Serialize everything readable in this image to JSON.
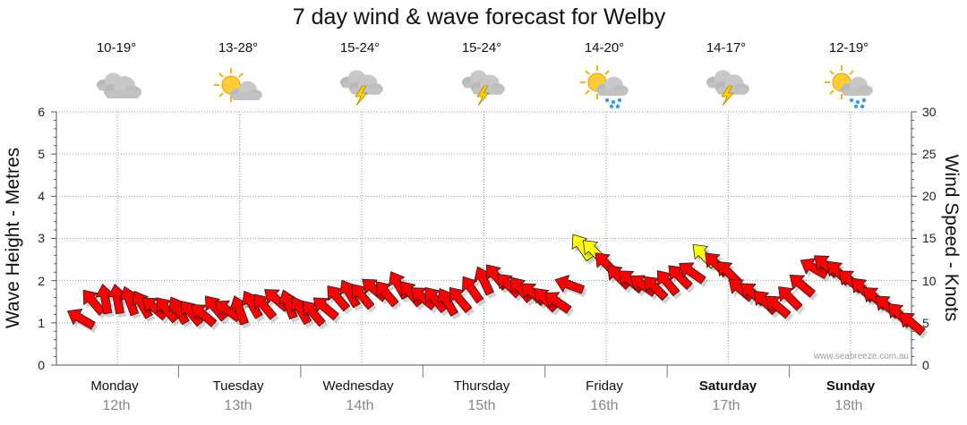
{
  "chart_data": {
    "type": "line",
    "title": "7 day wind & wave forecast for Welby",
    "ylabel_left": "Wave Height - Metres",
    "ylabel_right": "Wind Speed - Knots",
    "ylim_left": [
      0,
      6
    ],
    "ylim_right": [
      0,
      30
    ],
    "yticks_left": [
      "0",
      "1",
      "2",
      "3",
      "4",
      "5",
      "6"
    ],
    "yticks_right": [
      "0",
      "5",
      "10",
      "15",
      "20",
      "25",
      "30"
    ],
    "grid": true,
    "credit": "www.seabreeze.com.au",
    "days": [
      {
        "name": "Monday",
        "date": "12th",
        "temp": "10-19°",
        "weather": "cloudy",
        "bold": false
      },
      {
        "name": "Tuesday",
        "date": "13th",
        "temp": "13-28°",
        "weather": "partly-cloudy",
        "bold": false
      },
      {
        "name": "Wednesday",
        "date": "14th",
        "temp": "15-24°",
        "weather": "thunderstorm",
        "bold": false
      },
      {
        "name": "Thursday",
        "date": "15th",
        "temp": "15-24°",
        "weather": "thunderstorm",
        "bold": false
      },
      {
        "name": "Friday",
        "date": "16th",
        "temp": "14-20°",
        "weather": "sun-showers",
        "bold": false
      },
      {
        "name": "Saturday",
        "date": "17th",
        "temp": "14-17°",
        "weather": "thunderstorm",
        "bold": true
      },
      {
        "name": "Sunday",
        "date": "18th",
        "temp": "12-19°",
        "weather": "sun-showers",
        "bold": true
      }
    ],
    "wind_series": {
      "name": "Wind Speed (knots)",
      "x_days": [
        0.0,
        0.1,
        0.2,
        0.3,
        0.4,
        0.5,
        0.6,
        0.7,
        0.8,
        0.9,
        1.0,
        1.1,
        1.2,
        1.3,
        1.4,
        1.5,
        1.6,
        1.7,
        1.8,
        1.9,
        2.0,
        2.1,
        2.2,
        2.3,
        2.4,
        2.5,
        2.6,
        2.7,
        2.8,
        2.9,
        3.0,
        3.1,
        3.2,
        3.3,
        3.4,
        3.5,
        3.6,
        3.7,
        3.8,
        3.9,
        4.0,
        4.1,
        4.2,
        4.3,
        4.4,
        4.5,
        4.6,
        4.7,
        4.8,
        4.9,
        5.0,
        5.1,
        5.2,
        5.3,
        5.4,
        5.5,
        5.6,
        5.7,
        5.8,
        5.9,
        6.0,
        6.1,
        6.2,
        6.3,
        6.4,
        6.5,
        6.6,
        6.7,
        6.8
      ],
      "knots": [
        5.5,
        7.5,
        7.8,
        7.8,
        7.6,
        7.2,
        6.8,
        6.6,
        6.5,
        6.2,
        6.0,
        6.8,
        6.5,
        6.5,
        7.2,
        7.0,
        7.8,
        7.2,
        6.5,
        6.2,
        6.8,
        8.0,
        8.5,
        8.2,
        9.0,
        8.5,
        9.5,
        8.5,
        8.0,
        7.8,
        7.5,
        7.8,
        9.0,
        10.0,
        10.5,
        9.5,
        9.0,
        8.5,
        7.8,
        7.5,
        9.5,
        14.0,
        13.5,
        12.0,
        10.5,
        10.0,
        9.5,
        9.2,
        9.8,
        10.5,
        11.0,
        13.0,
        12.0,
        11.0,
        9.0,
        8.5,
        7.5,
        7.0,
        8.0,
        9.5,
        11.5,
        11.8,
        11.0,
        10.0,
        9.0,
        8.0,
        7.0,
        6.0,
        5.0
      ],
      "dir_deg": [
        210,
        230,
        260,
        260,
        250,
        240,
        220,
        230,
        240,
        230,
        220,
        230,
        215,
        250,
        240,
        230,
        220,
        250,
        240,
        230,
        220,
        230,
        240,
        230,
        220,
        230,
        240,
        230,
        220,
        230,
        240,
        230,
        235,
        245,
        230,
        225,
        230,
        220,
        225,
        215,
        200,
        235,
        225,
        225,
        225,
        220,
        215,
        225,
        230,
        225,
        215,
        225,
        225,
        225,
        220,
        220,
        225,
        220,
        225,
        220,
        210,
        220,
        225,
        220,
        225,
        220,
        220,
        225,
        220
      ],
      "color_threshold_knots": 13,
      "colors": {
        "below": "#ff0000",
        "above": "#ffff00",
        "outline": "#202020"
      }
    }
  }
}
